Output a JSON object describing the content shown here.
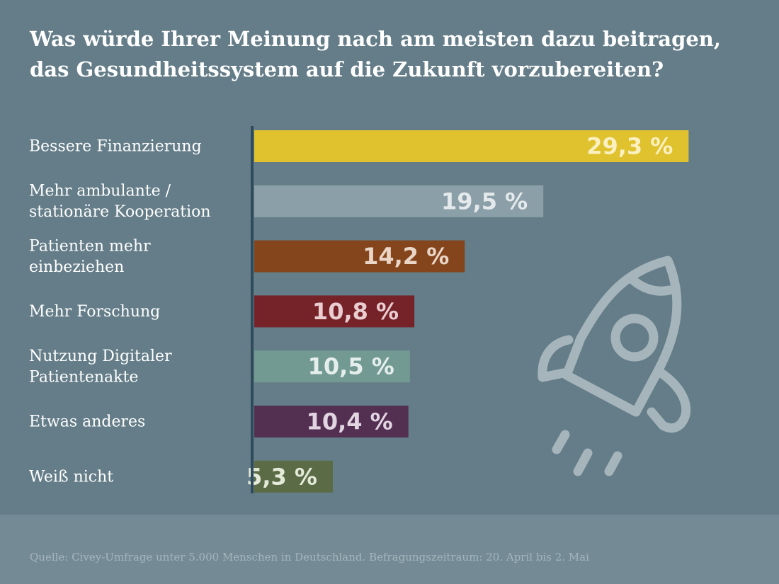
{
  "chart_data": {
    "type": "bar",
    "orientation": "horizontal",
    "title_lines": [
      "Was würde Ihrer Meinung nach am meisten dazu beitragen,",
      "das Gesundheitssystem auf die Zukunft vorzubereiten?"
    ],
    "categories": [
      [
        "Bessere Finanzierung"
      ],
      [
        "Mehr ambulante /",
        "stationäre Kooperation"
      ],
      [
        "Patienten mehr",
        "einbeziehen"
      ],
      [
        "Mehr Forschung"
      ],
      [
        "Nutzung Digitaler",
        "Patientenakte"
      ],
      [
        "Etwas anderes"
      ],
      [
        "Weiß nicht"
      ]
    ],
    "values": [
      29.3,
      19.5,
      14.2,
      10.8,
      10.5,
      10.4,
      5.3
    ],
    "value_labels": [
      "29,3 %",
      "19,5 %",
      "14,2 %",
      "10,8 %",
      "10,5 %",
      "10,4 %",
      "5,3 %"
    ],
    "bar_colors": [
      "#dfc22d",
      "#8b9fa8",
      "#84451c",
      "#762229",
      "#729a92",
      "#532f52",
      "#5a6b46"
    ],
    "label_colors": [
      "#faf0c0",
      "#e4e9ec",
      "#ead6c7",
      "#e9cdd0",
      "#e6eeec",
      "#e2d5e2",
      "#e4ead8"
    ],
    "xlim": [
      0,
      30
    ],
    "grid": false,
    "legend": "none"
  },
  "colors": {
    "background": "#647d88",
    "footer_background": "#748b95",
    "axis_line": "#2f4a5a",
    "rocket": "#a6b5bc"
  },
  "decoration": {
    "icon": "rocket-icon"
  },
  "source": "Quelle: Civey-Umfrage unter 5.000 Menschen in Deutschland. Befragungszeitraum: 20. April bis 2. Mai"
}
